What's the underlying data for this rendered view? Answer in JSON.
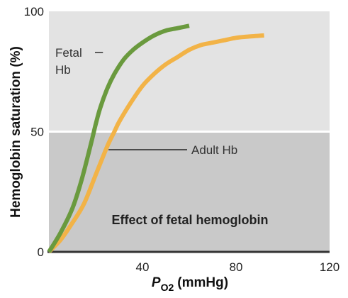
{
  "chart_data": {
    "type": "line",
    "xlabel_main": "P",
    "xlabel_sub": "O2",
    "xlabel_unit": "(mmHg)",
    "ylabel": "Hemoglobin saturation (%)",
    "annotation": "Effect of fetal hemoglobin",
    "xlim": [
      0,
      120
    ],
    "ylim": [
      0,
      100
    ],
    "xticks": [
      "40",
      "80",
      "120"
    ],
    "yticks": [
      "0",
      "50",
      "100"
    ],
    "series": [
      {
        "name": "Fetal\nHb",
        "label_lines": [
          "Fetal",
          "Hb"
        ],
        "color": "#6a9a3e",
        "x": [
          0,
          5,
          10,
          14,
          18,
          20,
          22,
          25,
          28,
          32,
          36,
          40,
          45,
          50,
          55,
          60
        ],
        "y": [
          0,
          8,
          18,
          30,
          45,
          53,
          60,
          68,
          74,
          80,
          84,
          87,
          90,
          92,
          93,
          94
        ]
      },
      {
        "name": "Adult Hb",
        "label_lines": [
          "Adult Hb"
        ],
        "color": "#f2b347",
        "x": [
          0,
          5,
          10,
          15,
          20,
          25,
          28,
          30,
          35,
          40,
          45,
          50,
          55,
          60,
          65,
          70,
          75,
          80,
          85,
          92
        ],
        "y": [
          0,
          5,
          12,
          20,
          32,
          44,
          50,
          54,
          62,
          69,
          74,
          78,
          81,
          84,
          86,
          87,
          88,
          89,
          89.5,
          90
        ]
      }
    ],
    "colors": {
      "upper_band": "#e3e3e3",
      "lower_band": "#c9c9c9",
      "divider": "#ffffff",
      "axis": "#333333"
    }
  }
}
